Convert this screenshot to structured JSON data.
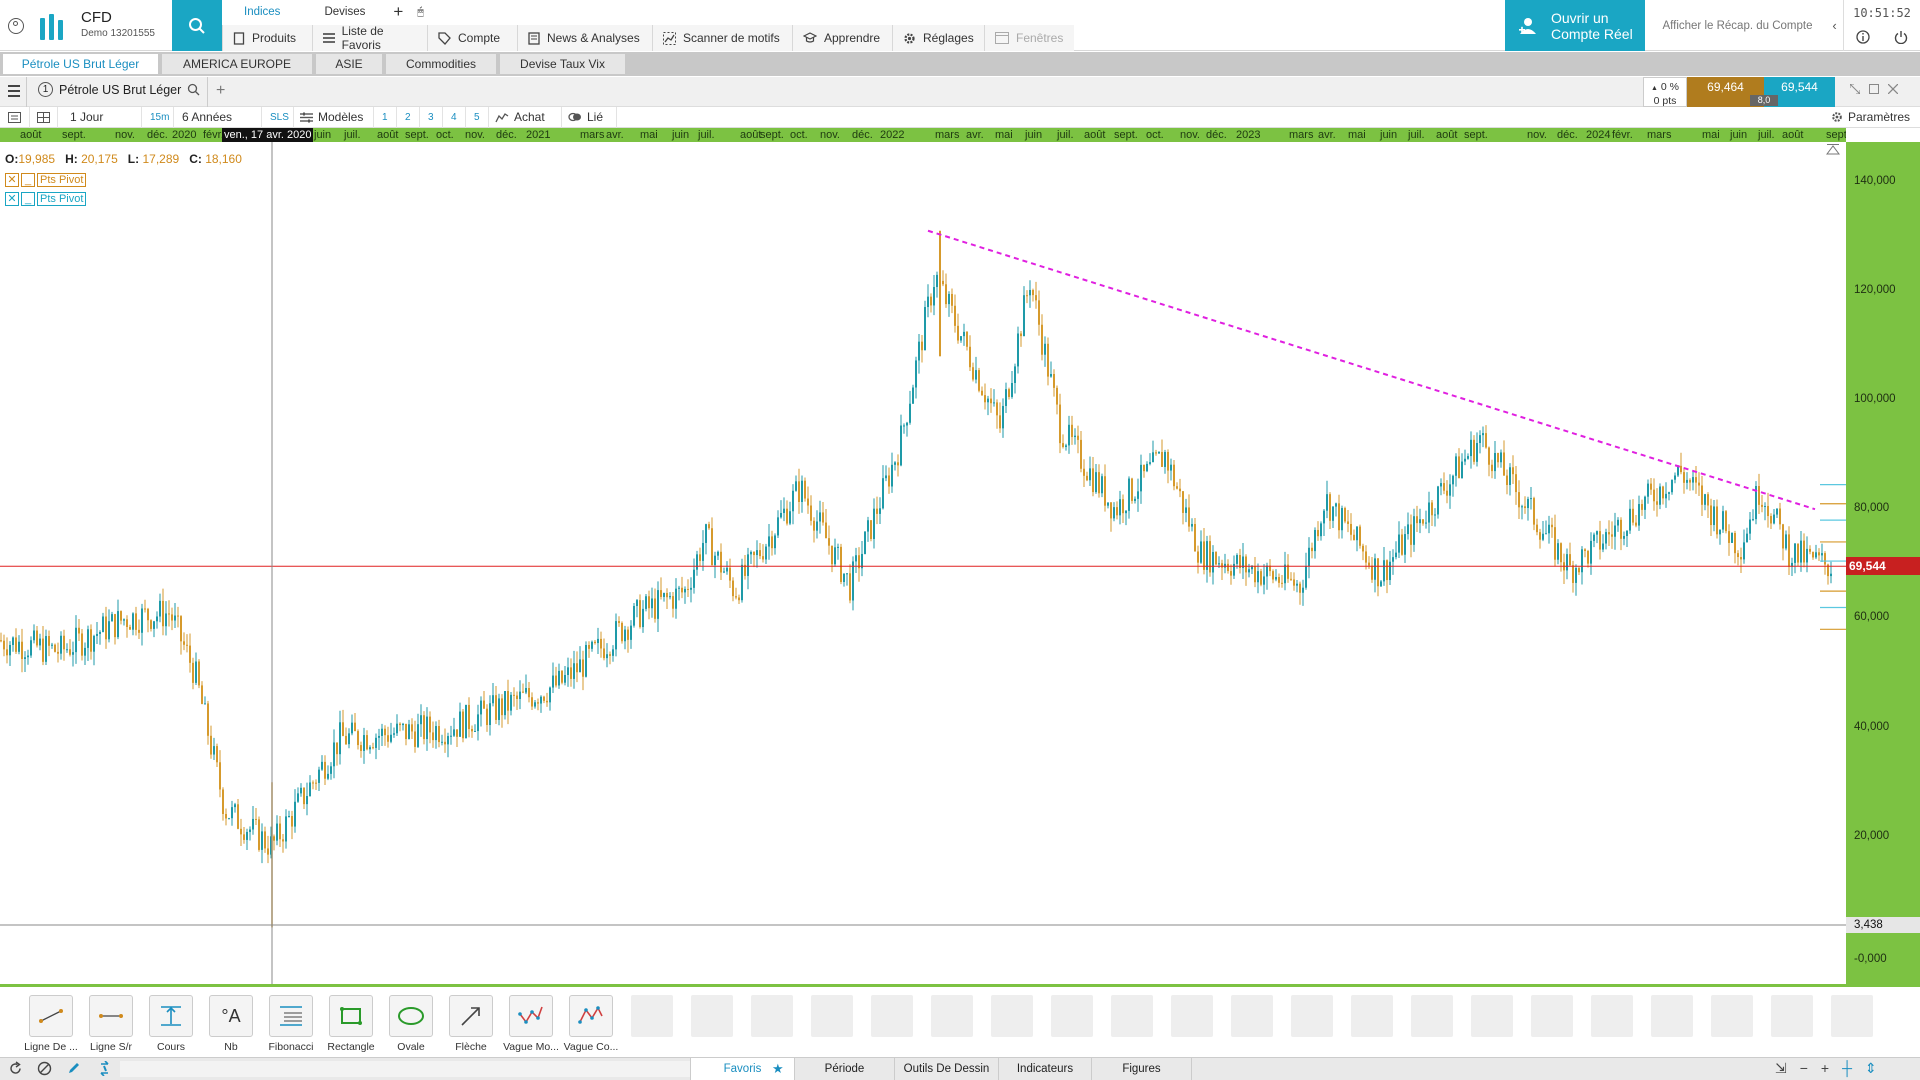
{
  "account": {
    "brand": "CFD",
    "demo_label": "Demo 13201555"
  },
  "top_tabs": [
    "Indices",
    "Devises"
  ],
  "menu": [
    {
      "label": "Produits",
      "icon": "document-icon"
    },
    {
      "label": "Liste de Favoris",
      "icon": "list-icon"
    },
    {
      "label": "Compte",
      "icon": "tag-icon"
    },
    {
      "label": "News & Analyses",
      "icon": "news-icon"
    },
    {
      "label": "Scanner de motifs",
      "icon": "scanner-icon"
    },
    {
      "label": "Apprendre",
      "icon": "graduation-cap-icon"
    },
    {
      "label": "Réglages",
      "icon": "gear-icon"
    },
    {
      "label": "Fenêtres",
      "icon": "window-icon"
    }
  ],
  "open_account": "Ouvrir un Compte Réel",
  "recap": "Afficher le Récap. du Compte",
  "clock": "10:51:52",
  "workspace_tabs": [
    "Pétrole US Brut Léger",
    "AMERICA EUROPE",
    "ASIE",
    "Commodities",
    "Devise Taux Vix"
  ],
  "chart": {
    "instrument_number": "1",
    "instrument": "Pétrole US Brut Léger",
    "change_pct": "0 %",
    "change_pts": "0 pts",
    "bid": "69,464",
    "ask": "69,544",
    "spread": "8,0",
    "interval": "1 Jour",
    "quick_interval": "15m",
    "range": "6 Années",
    "sls": "SLS",
    "templates": "Modèles",
    "layouts": [
      "1",
      "2",
      "3",
      "4",
      "5"
    ],
    "buy": "Achat",
    "linked": "Lié",
    "settings": "Paramètres",
    "cursor_date": "ven., 17 avr. 2020",
    "ohlc": {
      "o_label": "O:",
      "o": "19,985",
      "h_label": "H:",
      "h": "20,175",
      "l_label": "L:",
      "l": "17,289",
      "c_label": "C:",
      "c": "18,160"
    },
    "indicators": [
      "Pts Pivot",
      "Pts Pivot"
    ],
    "current_price": "69,544",
    "cursor_price": "3,438"
  },
  "time_axis": [
    "août",
    "sept.",
    "nov.",
    "déc.",
    "2020",
    "févr.",
    "juin",
    "juil.",
    "août",
    "sept.",
    "oct.",
    "nov.",
    "déc.",
    "2021",
    "mars",
    "avr.",
    "mai",
    "juin",
    "juil.",
    "août",
    "sept.",
    "oct.",
    "nov.",
    "déc.",
    "2022",
    "mars",
    "avr.",
    "mai",
    "juin",
    "juil.",
    "août",
    "sept.",
    "oct.",
    "nov.",
    "déc.",
    "2023",
    "mars",
    "avr.",
    "mai",
    "juin",
    "juil.",
    "août",
    "sept.",
    "nov.",
    "déc.",
    "2024",
    "févr.",
    "mars",
    "mai",
    "juin",
    "juil.",
    "août",
    "sept."
  ],
  "price_axis": [
    "140,000",
    "120,000",
    "100,000",
    "80,000",
    "60,000",
    "40,000",
    "20,000",
    "-0,000"
  ],
  "chart_data": {
    "type": "candlestick",
    "title": "Pétrole US Brut Léger",
    "interval": "1 Jour",
    "ylim": [
      -0.5,
      145
    ],
    "series": [
      {
        "name": "Pétrole US Brut Léger",
        "points": [
          [
            "août 2019",
            56.0
          ],
          [
            "oct. 2019",
            54.0
          ],
          [
            "déc. 2019",
            60.0
          ],
          [
            "janv. 2020",
            61.0
          ],
          [
            "févr. 2020",
            50.0
          ],
          [
            "mars 2020",
            25.0
          ],
          [
            "avr. 2020",
            18.2
          ],
          [
            "juin 2020",
            38.0
          ],
          [
            "sept. 2020",
            40.0
          ],
          [
            "déc. 2020",
            48.0
          ],
          [
            "févr. 2021",
            61.0
          ],
          [
            "mars 2021",
            65.0
          ],
          [
            "juil. 2021",
            75.0
          ],
          [
            "août 2021",
            65.0
          ],
          [
            "oct. 2021",
            84.0
          ],
          [
            "déc. 2021",
            66.0
          ],
          [
            "févr. 2022",
            92.0
          ],
          [
            "mars 2022",
            123.0
          ],
          [
            "avr. 2022",
            95.0
          ],
          [
            "juin 2022",
            122.0
          ],
          [
            "juil. 2022",
            95.0
          ],
          [
            "sept. 2022",
            80.0
          ],
          [
            "nov. 2022",
            90.0
          ],
          [
            "déc. 2022",
            72.0
          ],
          [
            "mars 2023",
            66.0
          ],
          [
            "avr. 2023",
            82.0
          ],
          [
            "juin 2023",
            68.0
          ],
          [
            "sept. 2023",
            93.0
          ],
          [
            "déc. 2023",
            69.0
          ],
          [
            "avr. 2024",
            87.0
          ],
          [
            "juin 2024",
            73.0
          ],
          [
            "juil. 2024",
            84.0
          ],
          [
            "août 2024",
            72.0
          ],
          [
            "sept. 2024",
            69.5
          ]
        ]
      }
    ],
    "trendline": {
      "color": "#e020e0",
      "style": "dashed",
      "from": [
        "mars 2022",
        131.0
      ],
      "to": [
        "sept. 2024",
        80.0
      ]
    },
    "horizontal_line": {
      "value": 69.544,
      "color": "#e02020"
    }
  },
  "drawing_tools": [
    {
      "label": "Ligne De ...",
      "icon": "trend-line-icon"
    },
    {
      "label": "Ligne S/r",
      "icon": "horizontal-line-icon"
    },
    {
      "label": "Cours",
      "icon": "price-icon"
    },
    {
      "label": "Nb",
      "icon": "text-icon"
    },
    {
      "label": "Fibonacci",
      "icon": "fibonacci-icon"
    },
    {
      "label": "Rectangle",
      "icon": "rectangle-icon"
    },
    {
      "label": "Ovale",
      "icon": "oval-icon"
    },
    {
      "label": "Flèche",
      "icon": "arrow-icon"
    },
    {
      "label": "Vague Mo...",
      "icon": "wave-icon"
    },
    {
      "label": "Vague Co...",
      "icon": "corrective-wave-icon"
    }
  ],
  "bottom_tabs": [
    "Favoris",
    "Période",
    "Outils De Dessin",
    "Indicateurs",
    "Figures"
  ]
}
